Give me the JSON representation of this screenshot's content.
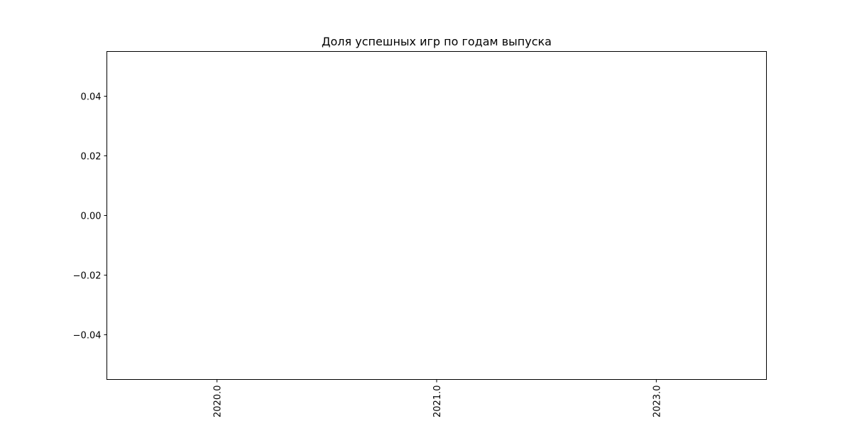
{
  "chart_data": {
    "type": "bar",
    "title": "Доля успешных игр по годам выпуска",
    "xlabel": "",
    "ylabel": "",
    "categories": [
      "2020.0",
      "2021.0",
      "2023.0"
    ],
    "values": [
      0,
      0,
      0
    ],
    "ylim": [
      -0.055,
      0.055
    ],
    "yticks": [
      0.04,
      0.02,
      0.0,
      -0.02,
      -0.04
    ],
    "ytick_labels": [
      "0.04",
      "0.02",
      "0.00",
      "−0.02",
      "−0.04"
    ],
    "xtick_rotation": "vertical",
    "grid": false,
    "legend": "none",
    "colors": {
      "frame": "#000000",
      "text": "#000000",
      "background": "#ffffff"
    }
  }
}
